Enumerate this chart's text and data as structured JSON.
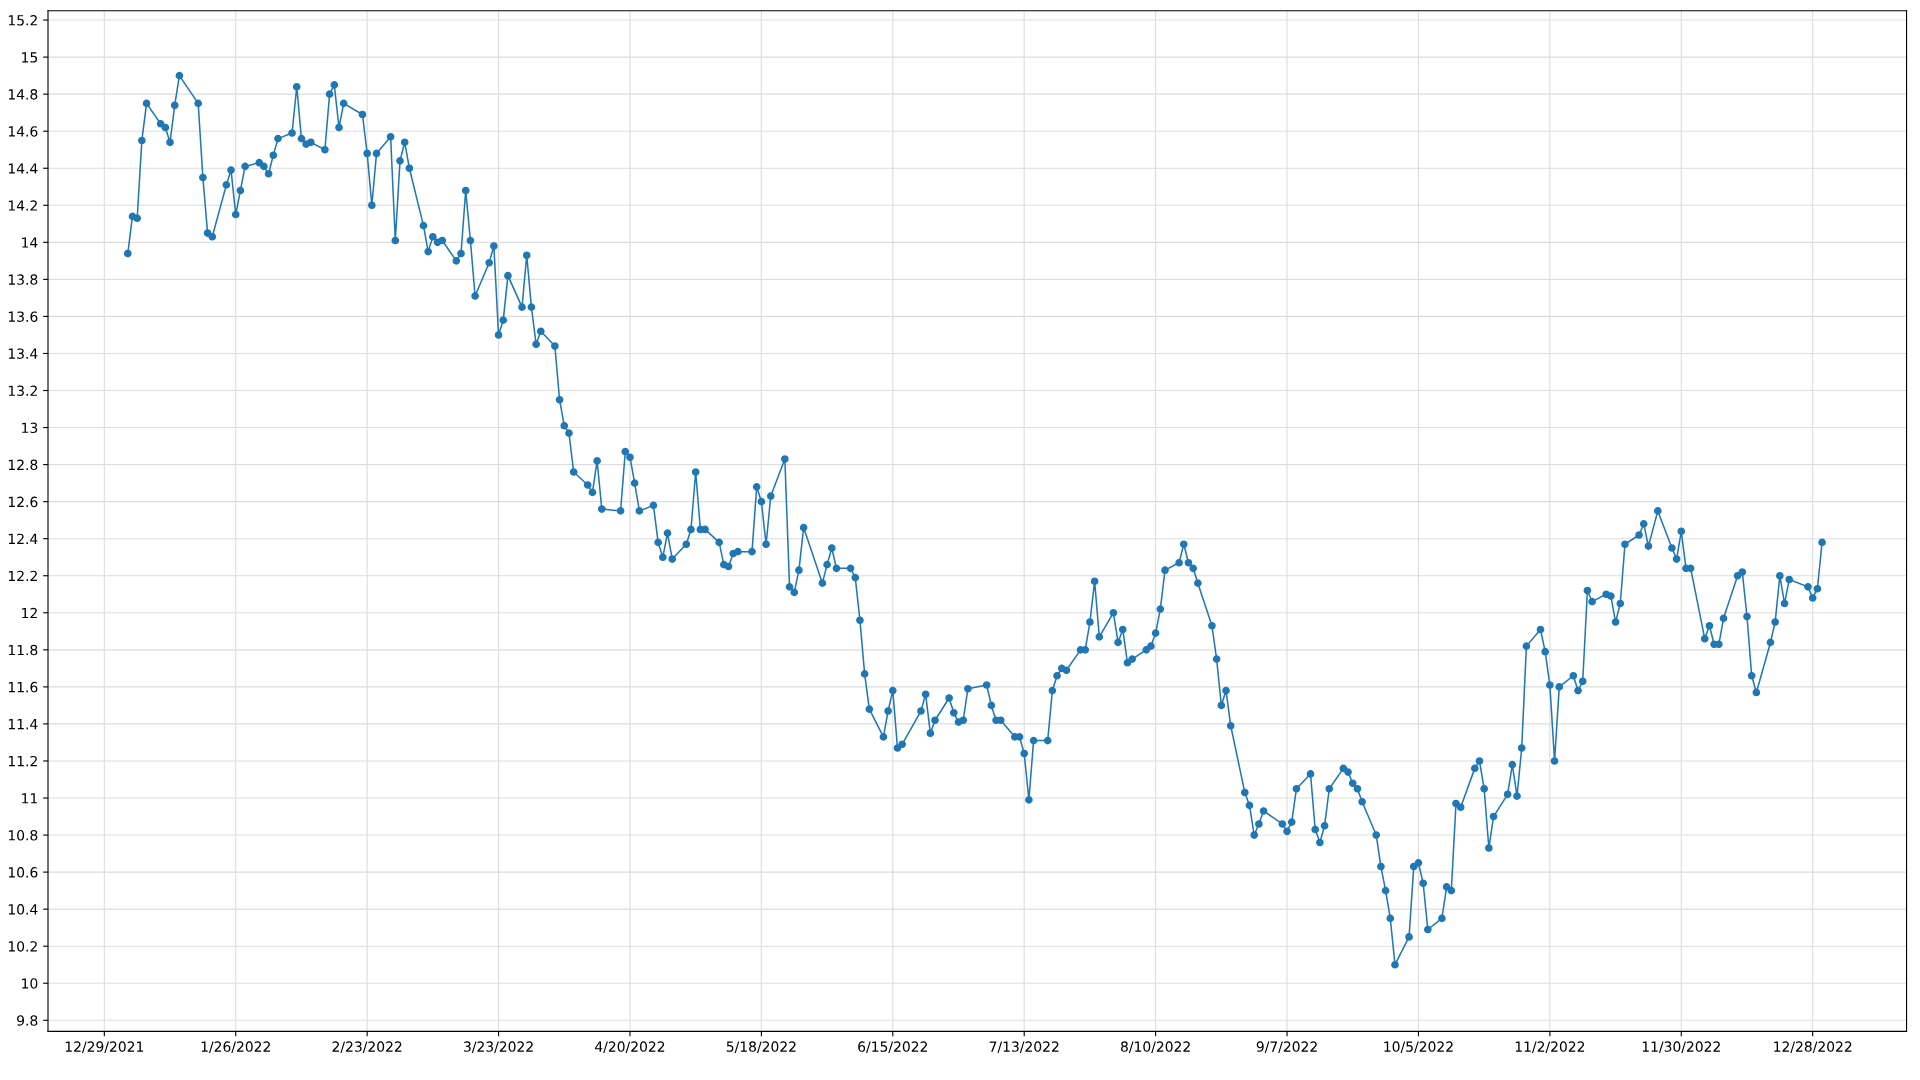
{
  "chart_data": {
    "type": "line",
    "marker": "circle",
    "line_style": "solid",
    "grid": true,
    "x": [
      "2022-01-03",
      "2022-01-04",
      "2022-01-05",
      "2022-01-06",
      "2022-01-07",
      "2022-01-10",
      "2022-01-11",
      "2022-01-12",
      "2022-01-13",
      "2022-01-14",
      "2022-01-18",
      "2022-01-19",
      "2022-01-20",
      "2022-01-21",
      "2022-01-24",
      "2022-01-25",
      "2022-01-26",
      "2022-01-27",
      "2022-01-28",
      "2022-01-31",
      "2022-02-01",
      "2022-02-02",
      "2022-02-03",
      "2022-02-04",
      "2022-02-07",
      "2022-02-08",
      "2022-02-09",
      "2022-02-10",
      "2022-02-11",
      "2022-02-14",
      "2022-02-15",
      "2022-02-16",
      "2022-02-17",
      "2022-02-18",
      "2022-02-22",
      "2022-02-23",
      "2022-02-24",
      "2022-02-25",
      "2022-02-28",
      "2022-03-01",
      "2022-03-02",
      "2022-03-03",
      "2022-03-04",
      "2022-03-07",
      "2022-03-08",
      "2022-03-09",
      "2022-03-10",
      "2022-03-11",
      "2022-03-14",
      "2022-03-15",
      "2022-03-16",
      "2022-03-17",
      "2022-03-18",
      "2022-03-21",
      "2022-03-22",
      "2022-03-23",
      "2022-03-24",
      "2022-03-25",
      "2022-03-28",
      "2022-03-29",
      "2022-03-30",
      "2022-03-31",
      "2022-04-01",
      "2022-04-04",
      "2022-04-05",
      "2022-04-06",
      "2022-04-07",
      "2022-04-08",
      "2022-04-11",
      "2022-04-12",
      "2022-04-13",
      "2022-04-14",
      "2022-04-18",
      "2022-04-19",
      "2022-04-20",
      "2022-04-21",
      "2022-04-22",
      "2022-04-25",
      "2022-04-26",
      "2022-04-27",
      "2022-04-28",
      "2022-04-29",
      "2022-05-02",
      "2022-05-03",
      "2022-05-04",
      "2022-05-05",
      "2022-05-06",
      "2022-05-09",
      "2022-05-10",
      "2022-05-11",
      "2022-05-12",
      "2022-05-13",
      "2022-05-16",
      "2022-05-17",
      "2022-05-18",
      "2022-05-19",
      "2022-05-20",
      "2022-05-23",
      "2022-05-24",
      "2022-05-25",
      "2022-05-26",
      "2022-05-27",
      "2022-05-31",
      "2022-06-01",
      "2022-06-02",
      "2022-06-03",
      "2022-06-06",
      "2022-06-07",
      "2022-06-08",
      "2022-06-09",
      "2022-06-10",
      "2022-06-13",
      "2022-06-14",
      "2022-06-15",
      "2022-06-16",
      "2022-06-17",
      "2022-06-21",
      "2022-06-22",
      "2022-06-23",
      "2022-06-24",
      "2022-06-27",
      "2022-06-28",
      "2022-06-29",
      "2022-06-30",
      "2022-07-01",
      "2022-07-05",
      "2022-07-06",
      "2022-07-07",
      "2022-07-08",
      "2022-07-11",
      "2022-07-12",
      "2022-07-13",
      "2022-07-14",
      "2022-07-15",
      "2022-07-18",
      "2022-07-19",
      "2022-07-20",
      "2022-07-21",
      "2022-07-22",
      "2022-07-25",
      "2022-07-26",
      "2022-07-27",
      "2022-07-28",
      "2022-07-29",
      "2022-08-01",
      "2022-08-02",
      "2022-08-03",
      "2022-08-04",
      "2022-08-05",
      "2022-08-08",
      "2022-08-09",
      "2022-08-10",
      "2022-08-11",
      "2022-08-12",
      "2022-08-15",
      "2022-08-16",
      "2022-08-17",
      "2022-08-18",
      "2022-08-19",
      "2022-08-22",
      "2022-08-23",
      "2022-08-24",
      "2022-08-25",
      "2022-08-26",
      "2022-08-29",
      "2022-08-30",
      "2022-08-31",
      "2022-09-01",
      "2022-09-02",
      "2022-09-06",
      "2022-09-07",
      "2022-09-08",
      "2022-09-09",
      "2022-09-12",
      "2022-09-13",
      "2022-09-14",
      "2022-09-15",
      "2022-09-16",
      "2022-09-19",
      "2022-09-20",
      "2022-09-21",
      "2022-09-22",
      "2022-09-23",
      "2022-09-26",
      "2022-09-27",
      "2022-09-28",
      "2022-09-29",
      "2022-09-30",
      "2022-10-03",
      "2022-10-04",
      "2022-10-05",
      "2022-10-06",
      "2022-10-07",
      "2022-10-10",
      "2022-10-11",
      "2022-10-12",
      "2022-10-13",
      "2022-10-14",
      "2022-10-17",
      "2022-10-18",
      "2022-10-19",
      "2022-10-20",
      "2022-10-21",
      "2022-10-24",
      "2022-10-25",
      "2022-10-26",
      "2022-10-27",
      "2022-10-28",
      "2022-10-31",
      "2022-11-01",
      "2022-11-02",
      "2022-11-03",
      "2022-11-04",
      "2022-11-07",
      "2022-11-08",
      "2022-11-09",
      "2022-11-10",
      "2022-11-11",
      "2022-11-14",
      "2022-11-15",
      "2022-11-16",
      "2022-11-17",
      "2022-11-18",
      "2022-11-21",
      "2022-11-22",
      "2022-11-23",
      "2022-11-25",
      "2022-11-28",
      "2022-11-29",
      "2022-11-30",
      "2022-12-01",
      "2022-12-02",
      "2022-12-05",
      "2022-12-06",
      "2022-12-07",
      "2022-12-08",
      "2022-12-09",
      "2022-12-12",
      "2022-12-13",
      "2022-12-14",
      "2022-12-15",
      "2022-12-16",
      "2022-12-19",
      "2022-12-20",
      "2022-12-21",
      "2022-12-22",
      "2022-12-23",
      "2022-12-27",
      "2022-12-28",
      "2022-12-29",
      "2022-12-30"
    ],
    "series": [
      {
        "color": "#1f77b4",
        "values": [
          13.94,
          14.14,
          14.13,
          14.55,
          14.75,
          14.64,
          14.62,
          14.54,
          14.74,
          14.9,
          14.75,
          14.35,
          14.05,
          14.03,
          14.31,
          14.39,
          14.15,
          14.28,
          14.41,
          14.43,
          14.41,
          14.37,
          14.47,
          14.56,
          14.59,
          14.84,
          14.56,
          14.53,
          14.54,
          14.5,
          14.8,
          14.85,
          14.62,
          14.75,
          14.69,
          14.48,
          14.2,
          14.48,
          14.57,
          14.01,
          14.44,
          14.54,
          14.4,
          14.09,
          13.95,
          14.03,
          14.0,
          14.01,
          13.9,
          13.94,
          14.28,
          14.01,
          13.71,
          13.89,
          13.98,
          13.5,
          13.58,
          13.82,
          13.65,
          13.93,
          13.65,
          13.45,
          13.52,
          13.44,
          13.15,
          13.01,
          12.97,
          12.76,
          12.69,
          12.65,
          12.82,
          12.56,
          12.55,
          12.87,
          12.84,
          12.7,
          12.55,
          12.58,
          12.38,
          12.3,
          12.43,
          12.29,
          12.37,
          12.45,
          12.76,
          12.45,
          12.45,
          12.38,
          12.26,
          12.25,
          12.32,
          12.33,
          12.33,
          12.68,
          12.6,
          12.37,
          12.63,
          12.83,
          12.14,
          12.11,
          12.23,
          12.46,
          12.16,
          12.26,
          12.35,
          12.24,
          12.24,
          12.19,
          11.96,
          11.67,
          11.48,
          11.33,
          11.47,
          11.58,
          11.27,
          11.29,
          11.47,
          11.56,
          11.35,
          11.42,
          11.54,
          11.46,
          11.41,
          11.42,
          11.59,
          11.61,
          11.5,
          11.42,
          11.42,
          11.33,
          11.33,
          11.24,
          10.99,
          11.31,
          11.31,
          11.58,
          11.66,
          11.7,
          11.69,
          11.8,
          11.8,
          11.95,
          12.17,
          11.87,
          12.0,
          11.84,
          11.91,
          11.73,
          11.75,
          11.8,
          11.82,
          11.89,
          12.02,
          12.23,
          12.27,
          12.37,
          12.27,
          12.24,
          12.16,
          11.93,
          11.75,
          11.5,
          11.58,
          11.39,
          11.03,
          10.96,
          10.8,
          10.86,
          10.93,
          10.86,
          10.82,
          10.87,
          11.05,
          11.13,
          10.83,
          10.76,
          10.85,
          11.05,
          11.16,
          11.14,
          11.08,
          11.05,
          10.98,
          10.8,
          10.63,
          10.5,
          10.35,
          10.1,
          10.25,
          10.63,
          10.65,
          10.54,
          10.29,
          10.35,
          10.52,
          10.5,
          10.97,
          10.95,
          11.16,
          11.2,
          11.05,
          10.73,
          10.9,
          11.02,
          11.18,
          11.01,
          11.27,
          11.82,
          11.91,
          11.79,
          11.61,
          11.2,
          11.6,
          11.66,
          11.58,
          11.63,
          12.12,
          12.06,
          12.1,
          12.09,
          11.95,
          12.05,
          12.37,
          12.42,
          12.48,
          12.36,
          12.55,
          12.35,
          12.29,
          12.44,
          12.24,
          12.24,
          11.86,
          11.93,
          11.83,
          11.83,
          11.97,
          12.2,
          12.22,
          11.98,
          11.66,
          11.57,
          11.84,
          11.95,
          12.2,
          12.05,
          12.18,
          12.14,
          12.08,
          12.13,
          12.38
        ]
      }
    ],
    "xlim": [
      "2021-12-17",
      "2023-01-17"
    ],
    "xticks": [
      {
        "value": "2021-12-29",
        "label": "12/29/2021"
      },
      {
        "value": "2022-01-26",
        "label": "1/26/2022"
      },
      {
        "value": "2022-02-23",
        "label": "2/23/2022"
      },
      {
        "value": "2022-03-23",
        "label": "3/23/2022"
      },
      {
        "value": "2022-04-20",
        "label": "4/20/2022"
      },
      {
        "value": "2022-05-18",
        "label": "5/18/2022"
      },
      {
        "value": "2022-06-15",
        "label": "6/15/2022"
      },
      {
        "value": "2022-07-13",
        "label": "7/13/2022"
      },
      {
        "value": "2022-08-10",
        "label": "8/10/2022"
      },
      {
        "value": "2022-09-07",
        "label": "9/7/2022"
      },
      {
        "value": "2022-10-05",
        "label": "10/5/2022"
      },
      {
        "value": "2022-11-02",
        "label": "11/2/2022"
      },
      {
        "value": "2022-11-30",
        "label": "11/30/2022"
      },
      {
        "value": "2022-12-28",
        "label": "12/28/2022"
      }
    ],
    "ylim": [
      9.74,
      15.25
    ],
    "yticks": [
      9.8,
      10,
      10.2,
      10.4,
      10.6,
      10.8,
      11,
      11.2,
      11.4,
      11.6,
      11.8,
      12,
      12.2,
      12.4,
      12.6,
      12.8,
      13,
      13.2,
      13.4,
      13.6,
      13.8,
      14,
      14.2,
      14.4,
      14.6,
      14.8,
      15,
      15.2
    ]
  }
}
